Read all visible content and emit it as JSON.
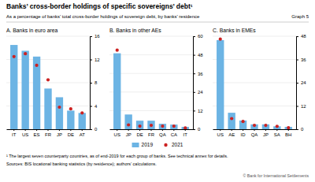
{
  "title": "Banks’ cross-border holdings of specific sovereigns’ debt¹",
  "subtitle": "As a percentage of banks’ total cross-border holdings of sovereign debt, by banks’ residence",
  "annotations": [
    "Graph 5",
    "¹ The largest seven counterparty countries, as of end-2019 for each group of banks. See technical annex for details.",
    "Sources: BIS locational banking statistics (by residence); authors’ calculations.",
    "© Bank for International Settlements"
  ],
  "chart_data": [
    {
      "type": "bar",
      "title": "A. Banks in euro area",
      "categories": [
        "IT",
        "US",
        "ES",
        "FR",
        "JP",
        "DE",
        "AT"
      ],
      "series": [
        {
          "name": "2019",
          "type": "bar",
          "color": "#6cb4e4",
          "values": [
            14.5,
            13.5,
            12.5,
            7.0,
            5.5,
            3.2,
            2.8
          ]
        },
        {
          "name": "2021",
          "type": "scatter",
          "marker": "circle",
          "color": "#cc2222",
          "values": [
            12.5,
            13.0,
            11.0,
            8.5,
            3.8,
            3.5,
            2.8
          ]
        }
      ],
      "ylim": [
        0,
        16
      ],
      "yticks": [
        0,
        4,
        8,
        12,
        16
      ],
      "grid": true,
      "legend": "bottom"
    },
    {
      "type": "bar",
      "title": "B. Banks in other AEs",
      "categories": [
        "US",
        "JP",
        "DE",
        "FR",
        "QA",
        "CA",
        "IT"
      ],
      "series": [
        {
          "name": "2019",
          "type": "bar",
          "color": "#6cb4e4",
          "values": [
            49.0,
            9.5,
            5.5,
            5.5,
            3.5,
            3.0,
            1.5
          ]
        },
        {
          "name": "2021",
          "type": "scatter",
          "marker": "circle",
          "color": "#cc2222",
          "values": [
            51.0,
            2.8,
            2.0,
            2.5,
            2.0,
            2.0,
            0.8
          ]
        }
      ],
      "ylim": [
        0,
        60
      ],
      "yticks": [
        0,
        12,
        24,
        36,
        48,
        60
      ],
      "grid": true
    },
    {
      "type": "bar",
      "title": "C. Banks in EMEs",
      "categories": [
        "US",
        "AE",
        "ID",
        "QA",
        "JP",
        "SA",
        "BH"
      ],
      "series": [
        {
          "name": "2019",
          "type": "bar",
          "color": "#6cb4e4",
          "values": [
            46.0,
            8.5,
            4.5,
            2.5,
            2.5,
            1.5,
            1.2
          ]
        },
        {
          "name": "2021",
          "type": "scatter",
          "marker": "circle",
          "color": "#cc2222",
          "values": [
            46.5,
            5.5,
            4.0,
            2.0,
            2.0,
            1.5,
            0.8
          ]
        }
      ],
      "ylim": [
        0,
        48
      ],
      "yticks": [
        0,
        12,
        24,
        36,
        48
      ],
      "grid": true
    }
  ]
}
